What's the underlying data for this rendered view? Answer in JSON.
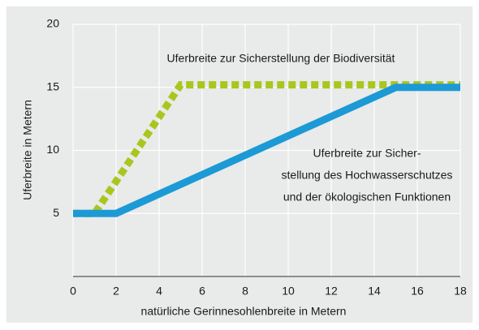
{
  "chart_data": {
    "type": "line",
    "xlabel": "natürliche Gerinnesohlenbreite in Metern",
    "ylabel": "Uferbreite in Metern",
    "xlim": [
      0,
      18
    ],
    "xticks": [
      0,
      2,
      4,
      6,
      8,
      10,
      12,
      14,
      16,
      18
    ],
    "ylim": [
      0,
      20
    ],
    "yticks": [
      5,
      10,
      15,
      20
    ],
    "grid": true,
    "series": [
      {
        "name": "Uferbreite zur Sicherstellung der Biodiversität",
        "color": "#a9c61e",
        "style": "dotted",
        "x": [
          0,
          1,
          5,
          18
        ],
        "values": [
          5,
          5,
          15.2,
          15.2
        ]
      },
      {
        "name_lines": [
          "Uferbreite zur Sicher-",
          "stellung des Hochwasserschutzes",
          "und der ökologischen Funktionen"
        ],
        "color": "#1b9ad6",
        "style": "solid",
        "x": [
          0,
          2,
          15,
          18
        ],
        "values": [
          5,
          5,
          15,
          15
        ]
      }
    ]
  }
}
